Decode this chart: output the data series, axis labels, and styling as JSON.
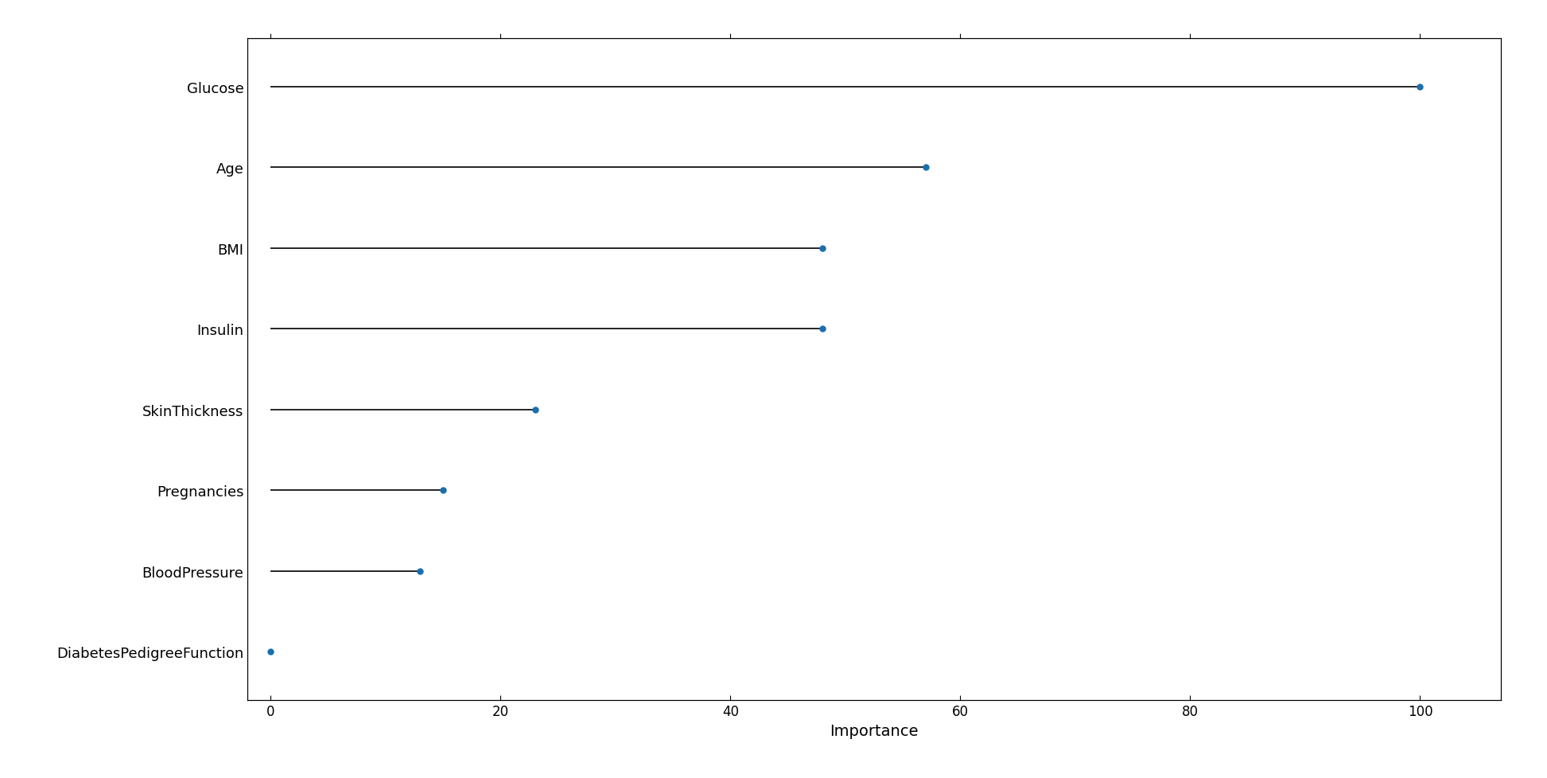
{
  "categories": [
    "Glucose",
    "Age",
    "BMI",
    "Insulin",
    "SkinThickness",
    "Pregnancies",
    "BloodPressure",
    "DiabetesPedigreeFunction"
  ],
  "values": [
    100.0,
    57.0,
    48.0,
    48.0,
    23.0,
    15.0,
    13.0,
    0.0
  ],
  "line_color": "#000000",
  "dot_color": "#1a6faf",
  "xlabel": "Importance",
  "xlim": [
    -2,
    107
  ],
  "xticks": [
    0,
    20,
    40,
    60,
    80,
    100
  ],
  "background_color": "#ffffff",
  "spine_color": "#000000",
  "line_width": 1.2,
  "label_fontsize": 13,
  "tick_fontsize": 12,
  "xlabel_fontsize": 14
}
